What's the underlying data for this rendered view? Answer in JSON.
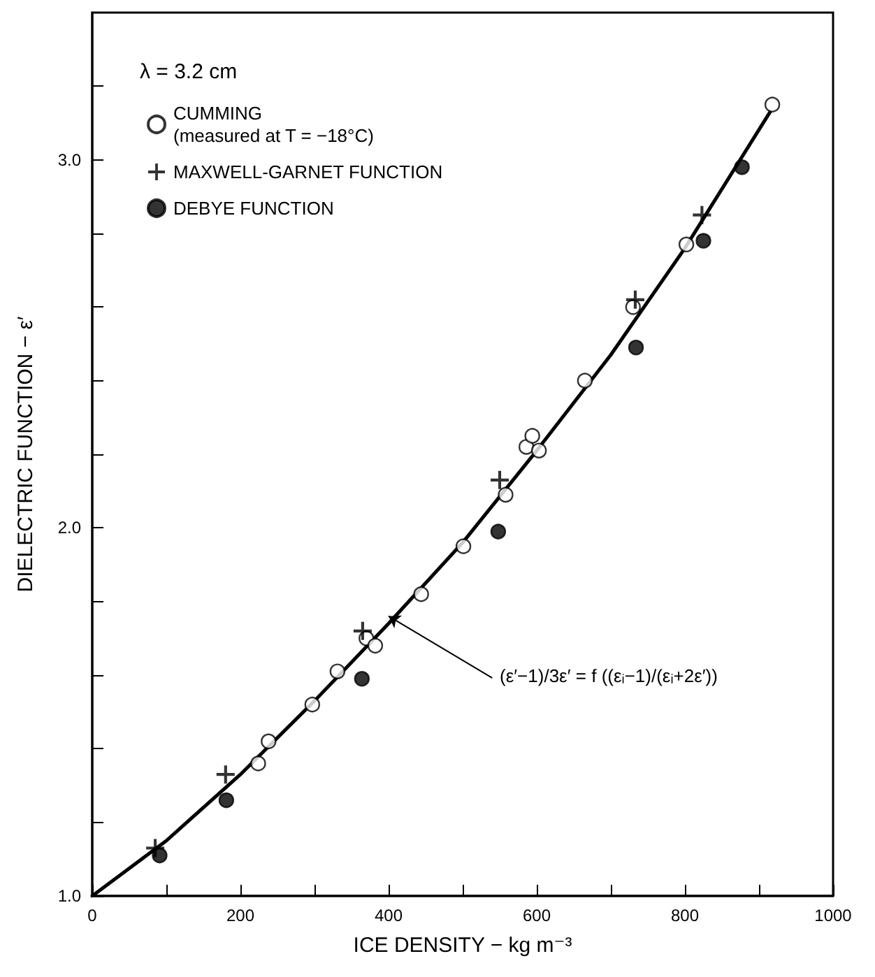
{
  "chart_data": {
    "type": "scatter",
    "xlabel": "ICE DENSITY − kg m⁻³",
    "ylabel": "DIELECTRIC FUNCTION − ε′",
    "legend_title": "λ = 3.2 cm",
    "legend": "top left",
    "grid": false,
    "xlim": [
      0,
      1000
    ],
    "ylim": [
      1.0,
      3.4
    ],
    "xticks": [
      0,
      {
        "value": 100,
        "label": null
      },
      200,
      {
        "value": 300,
        "label": null
      },
      400,
      {
        "value": 500,
        "label": null
      },
      600,
      {
        "value": 700,
        "label": null
      },
      800,
      {
        "value": 900,
        "label": null
      },
      1000
    ],
    "yticks": [
      {
        "value": 1.0,
        "label": "1.0"
      },
      {
        "value": 1.2,
        "label": null
      },
      {
        "value": 1.4,
        "label": null
      },
      {
        "value": 1.6,
        "label": null
      },
      {
        "value": 1.8,
        "label": null
      },
      {
        "value": 2.0,
        "label": "2.0"
      },
      {
        "value": 2.2,
        "label": null
      },
      {
        "value": 2.4,
        "label": null
      },
      {
        "value": 2.6,
        "label": null
      },
      {
        "value": 2.8,
        "label": null
      },
      {
        "value": 3.0,
        "label": "3.0"
      },
      {
        "value": 3.2,
        "label": null
      }
    ],
    "annotations": [
      {
        "text": "(ε′−1)/3ε′ = f ((εᵢ−1)/(εᵢ+2ε′))",
        "x": 400,
        "y": 1.76
      }
    ],
    "series": [
      {
        "name": "CUMMING\n(measured at T = −18°C)",
        "marker": "circle",
        "color": "#ffffff",
        "x": [
          224,
          238,
          297,
          331,
          370,
          382,
          444,
          501,
          558,
          586,
          594,
          603,
          665,
          730,
          802,
          918
        ],
        "values": [
          1.36,
          1.42,
          1.52,
          1.61,
          1.7,
          1.68,
          1.82,
          1.95,
          2.09,
          2.22,
          2.25,
          2.21,
          2.4,
          2.6,
          2.77,
          3.15
        ]
      },
      {
        "name": "MAXWELL-GARNET FUNCTION",
        "marker": "cross",
        "color": "#000000",
        "x": [
          85,
          180,
          365,
          550,
          733,
          823
        ],
        "values": [
          1.13,
          1.33,
          1.72,
          2.13,
          2.62,
          2.85
        ]
      },
      {
        "name": "DEBYE FUNCTION",
        "marker": "circle",
        "color": "#000000",
        "x": [
          91,
          181,
          364,
          548,
          734,
          825,
          877
        ],
        "values": [
          1.11,
          1.26,
          1.59,
          1.99,
          2.49,
          2.78,
          2.98
        ]
      },
      {
        "type": "line",
        "marker": "none",
        "line_style": "solid",
        "color": "#000000",
        "x": [
          0,
          100,
          200,
          300,
          400,
          500,
          600,
          700,
          800,
          915
        ],
        "values": [
          1.0,
          1.15,
          1.33,
          1.53,
          1.74,
          1.96,
          2.21,
          2.47,
          2.76,
          3.13
        ]
      }
    ]
  }
}
